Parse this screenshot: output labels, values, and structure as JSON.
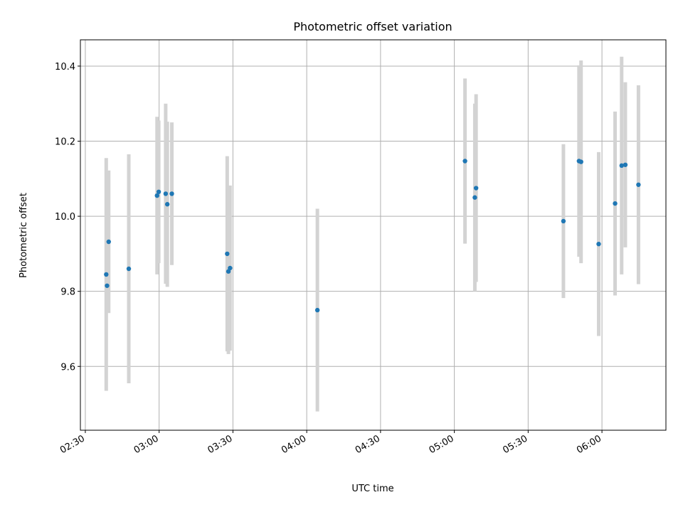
{
  "chart_data": {
    "type": "scatter",
    "title": "Photometric offset variation",
    "xlabel": "UTC time",
    "ylabel": "Photometric offset",
    "xlim": [
      "02:28",
      "06:26"
    ],
    "ylim": [
      9.43,
      10.47
    ],
    "grid": true,
    "x_ticks": [
      "02:30",
      "03:00",
      "03:30",
      "04:00",
      "04:30",
      "05:00",
      "05:30",
      "06:00"
    ],
    "y_ticks": [
      "9.6",
      "9.8",
      "10.0",
      "10.2",
      "10.4"
    ],
    "points": [
      {
        "x": "02:38:30",
        "y": 9.845,
        "err": 0.31
      },
      {
        "x": "02:38:50",
        "y": 9.815,
        "err": 0.07
      },
      {
        "x": "02:39:30",
        "y": 9.932,
        "err": 0.19
      },
      {
        "x": "02:47:40",
        "y": 9.86,
        "err": 0.305
      },
      {
        "x": "02:59:10",
        "y": 10.055,
        "err": 0.21
      },
      {
        "x": "02:59:50",
        "y": 10.065,
        "err": 0.19
      },
      {
        "x": "03:02:40",
        "y": 10.06,
        "err": 0.24
      },
      {
        "x": "03:03:20",
        "y": 10.032,
        "err": 0.22
      },
      {
        "x": "03:05:10",
        "y": 10.06,
        "err": 0.19
      },
      {
        "x": "03:27:40",
        "y": 9.9,
        "err": 0.26
      },
      {
        "x": "03:28:10",
        "y": 9.853,
        "err": 0.22
      },
      {
        "x": "03:28:50",
        "y": 9.862,
        "err": 0.22
      },
      {
        "x": "04:04:20",
        "y": 9.75,
        "err": 0.27
      },
      {
        "x": "05:04:20",
        "y": 10.147,
        "err": 0.22
      },
      {
        "x": "05:08:20",
        "y": 10.05,
        "err": 0.25
      },
      {
        "x": "05:08:50",
        "y": 10.075,
        "err": 0.25
      },
      {
        "x": "05:44:20",
        "y": 9.987,
        "err": 0.205
      },
      {
        "x": "05:50:40",
        "y": 10.147,
        "err": 0.255
      },
      {
        "x": "05:51:30",
        "y": 10.145,
        "err": 0.27
      },
      {
        "x": "05:58:40",
        "y": 9.926,
        "err": 0.245
      },
      {
        "x": "06:05:20",
        "y": 10.034,
        "err": 0.245
      },
      {
        "x": "06:08:00",
        "y": 10.135,
        "err": 0.29
      },
      {
        "x": "06:09:30",
        "y": 10.137,
        "err": 0.22
      },
      {
        "x": "06:14:50",
        "y": 10.084,
        "err": 0.265
      }
    ],
    "point_color": "#1f77b4",
    "errorbar_color": "#d3d3d3"
  }
}
